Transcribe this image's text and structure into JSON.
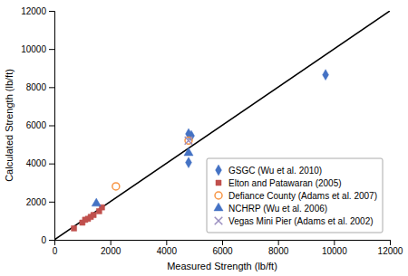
{
  "chart_data": {
    "type": "scatter",
    "xlabel": "Measured Strength (lb/ft)",
    "ylabel": "Calculated Strength (lb/ft)",
    "xlim": [
      0,
      12000
    ],
    "ylim": [
      0,
      12000
    ],
    "xticks": [
      0,
      2000,
      4000,
      6000,
      8000,
      10000,
      12000
    ],
    "yticks": [
      0,
      2000,
      4000,
      6000,
      8000,
      10000,
      12000
    ],
    "grid": false,
    "legend": "lower right",
    "diagonal_line": {
      "x": [
        0,
        12000
      ],
      "values": [
        0,
        12000
      ],
      "color": "#000000"
    },
    "series": [
      {
        "name": "GSGC (Wu et al. 2010)",
        "color": "#4472c4",
        "marker": "diamond",
        "x": [
          4800,
          4900,
          4800,
          9700
        ],
        "values": [
          4050,
          5450,
          5550,
          8650
        ]
      },
      {
        "name": "Elton and Patawaran (2005)",
        "color": "#c0504d",
        "marker": "square",
        "x": [
          700,
          1000,
          1100,
          1200,
          1300,
          1400,
          1600,
          1700
        ],
        "values": [
          600,
          900,
          1050,
          1100,
          1200,
          1300,
          1500,
          1700
        ]
      },
      {
        "name": "Defiance County (Adams et al. 2007)",
        "color": "#f79646",
        "marker": "circle-open",
        "x": [
          2200,
          4800
        ],
        "values": [
          2800,
          5200
        ]
      },
      {
        "name": "NCHRP (Wu et al. 2006)",
        "color": "#4472c4",
        "marker": "triangle",
        "x": [
          1500,
          4800
        ],
        "values": [
          1900,
          4550
        ]
      },
      {
        "name": "Vegas Mini Pier (Adams et al. 2002)",
        "color": "#9b8fc0",
        "marker": "x",
        "x": [
          4800
        ],
        "values": [
          5200
        ]
      }
    ]
  }
}
